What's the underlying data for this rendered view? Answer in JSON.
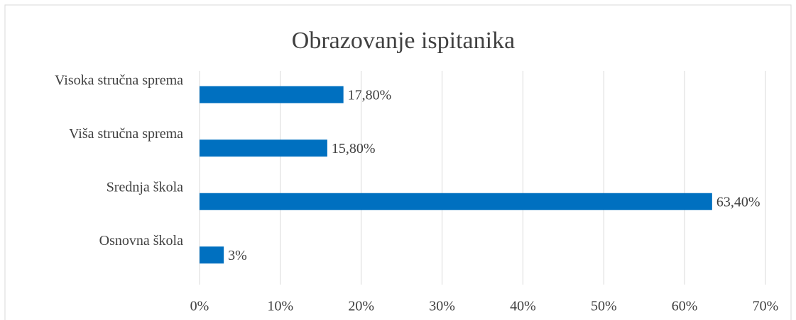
{
  "chart_data": {
    "type": "bar",
    "orientation": "horizontal",
    "title": "Obrazovanje ispitanika",
    "categories": [
      "Visoka stručna sprema",
      "Viša stručna sprema",
      "Srednja škola",
      "Osnovna škola"
    ],
    "values": [
      17.8,
      15.8,
      63.4,
      3
    ],
    "value_labels": [
      "17,80%",
      "15,80%",
      "63,40%",
      "3%"
    ],
    "color": "#0070c0",
    "xlim": [
      0,
      70
    ],
    "xticks": [
      {
        "value": 0,
        "label": "0%"
      },
      {
        "value": 10,
        "label": "10%"
      },
      {
        "value": 20,
        "label": "20%"
      },
      {
        "value": 30,
        "label": "30%"
      },
      {
        "value": 40,
        "label": "40%"
      },
      {
        "value": 50,
        "label": "50%"
      },
      {
        "value": 60,
        "label": "60%"
      },
      {
        "value": 70,
        "label": "70%"
      }
    ],
    "grid": true
  }
}
